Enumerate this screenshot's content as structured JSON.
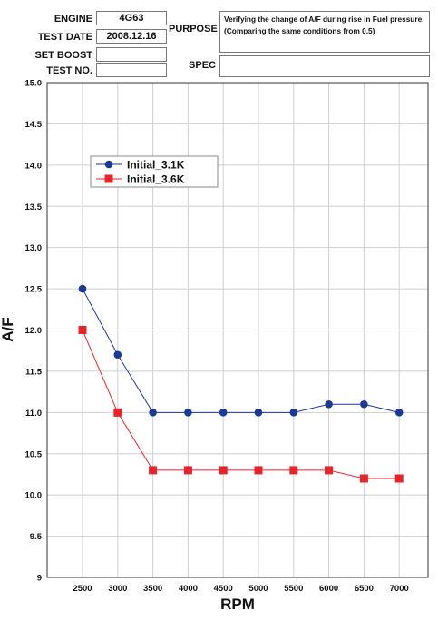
{
  "header": {
    "engine_label": "ENGINE",
    "engine_value": "4G63",
    "test_date_label": "TEST DATE",
    "test_date_value": "2008.12.16",
    "set_boost_label": "SET BOOST",
    "set_boost_value": "",
    "test_no_label": "TEST NO.",
    "test_no_value": "",
    "purpose_label": "PURPOSE",
    "purpose_value": "Verifying the change of A/F during rise in Fuel pressure. (Comparing the same conditions from 0.5)",
    "spec_label": "SPEC",
    "spec_value": ""
  },
  "chart_data": {
    "type": "line",
    "xlabel": "RPM",
    "ylabel": "A/F",
    "categories": [
      "2500",
      "3000",
      "3500",
      "4000",
      "4500",
      "5000",
      "5500",
      "6000",
      "6500",
      "7000"
    ],
    "ylim": [
      9,
      15
    ],
    "yticks": [
      "15.0",
      "14.5",
      "14.0",
      "13.5",
      "13.0",
      "12.5",
      "12.0",
      "11.5",
      "11.0",
      "10.5",
      "10.0",
      "9.5",
      "9"
    ],
    "ytick_values": [
      15.0,
      14.5,
      14.0,
      13.5,
      13.0,
      12.5,
      12.0,
      11.5,
      11.0,
      10.5,
      10.0,
      9.5,
      9.0
    ],
    "grid": true,
    "legend_position": "top-left",
    "series": [
      {
        "name": "Initial_3.1K",
        "color": "#1a3a9a",
        "marker": "circle",
        "values": [
          12.5,
          11.7,
          11.0,
          11.0,
          11.0,
          11.0,
          11.0,
          11.1,
          11.1,
          11.0
        ]
      },
      {
        "name": "Initial_3.6K",
        "color": "#e8232a",
        "marker": "square",
        "values": [
          12.0,
          11.0,
          10.3,
          10.3,
          10.3,
          10.3,
          10.3,
          10.3,
          10.2,
          10.2
        ]
      }
    ]
  }
}
